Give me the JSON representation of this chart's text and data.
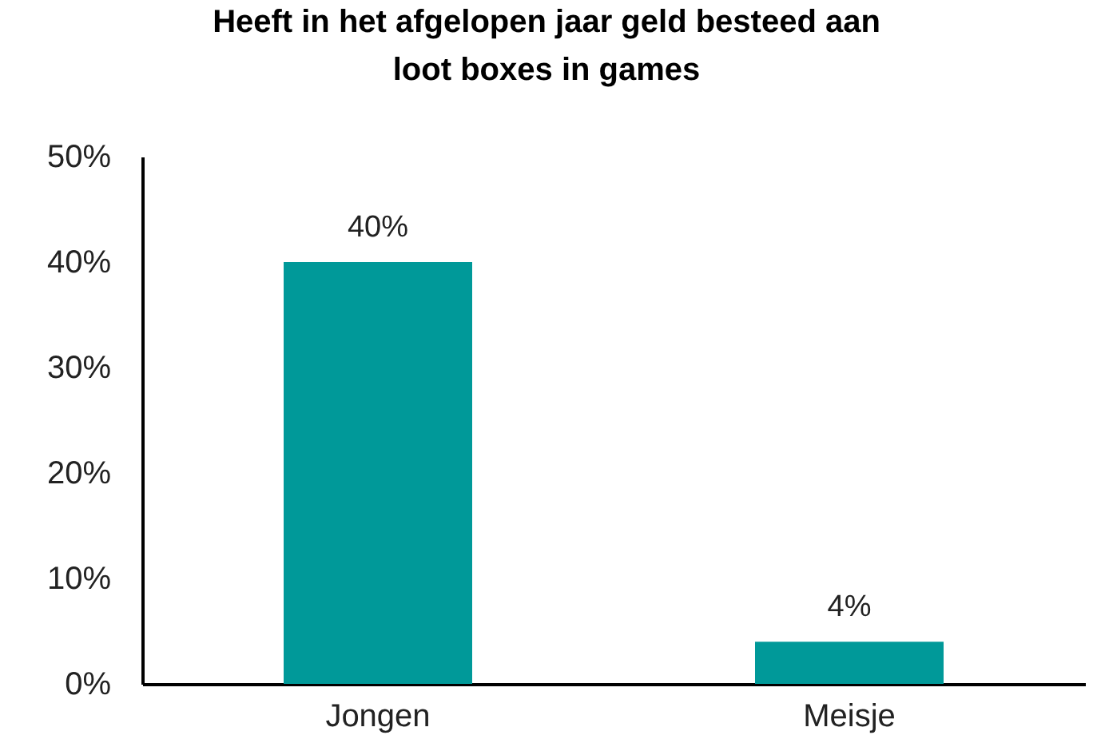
{
  "chart_data": {
    "type": "bar",
    "title": "Heeft in het afgelopen jaar geld besteed aan loot boxes in games",
    "categories": [
      "Jongen",
      "Meisje"
    ],
    "values": [
      40,
      4
    ],
    "value_labels": [
      "40%",
      "4%"
    ],
    "color": "#009999",
    "ylim": [
      0,
      50
    ],
    "yticks": [
      {
        "value": 0,
        "label": "0%"
      },
      {
        "value": 10,
        "label": "10%"
      },
      {
        "value": 20,
        "label": "20%"
      },
      {
        "value": 30,
        "label": "30%"
      },
      {
        "value": 40,
        "label": "40%"
      },
      {
        "value": 50,
        "label": "50%"
      }
    ]
  }
}
